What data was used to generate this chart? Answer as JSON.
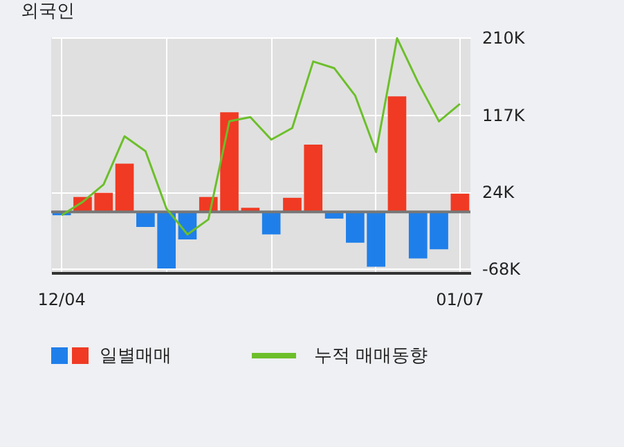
{
  "chart_data": {
    "type": "bar",
    "title": "외국인",
    "categories": [
      "12/04",
      null,
      null,
      null,
      null,
      null,
      null,
      null,
      null,
      null,
      null,
      null,
      null,
      null,
      null,
      null,
      null,
      null,
      null,
      "01/07"
    ],
    "series": [
      {
        "name": "일별매매",
        "colors": [
          "#1f7fea",
          "#f03a23",
          "#f03a23",
          "#f03a23",
          "#1f7fea",
          "#1f7fea",
          "#1f7fea",
          "#f03a23",
          "#f03a23",
          "#f03a23",
          "#1f7fea",
          "#f03a23",
          "#f03a23",
          "#1f7fea",
          "#1f7fea",
          "#1f7fea",
          "#f03a23",
          "#1f7fea",
          "#1f7fea",
          "#f03a23"
        ],
        "values": [
          -4,
          18,
          23,
          58,
          -18,
          -68,
          -33,
          18,
          120,
          5,
          -27,
          17,
          81,
          -8,
          -37,
          -66,
          139,
          -56,
          -45,
          22
        ]
      },
      {
        "name": "누적 매매동향",
        "type": "line",
        "color": "#6cbf2a",
        "values": [
          -4,
          12,
          33,
          91,
          73,
          4,
          -27,
          -9,
          109,
          114,
          87,
          101,
          181,
          173,
          140,
          72,
          209,
          156,
          109,
          130
        ]
      }
    ],
    "ylim": [
      -73,
      210
    ],
    "yticks": [
      {
        "value": 210,
        "label": "210K"
      },
      {
        "value": 117,
        "label": "117K"
      },
      {
        "value": 24,
        "label": "24K"
      },
      {
        "value": -68,
        "label": "-68K"
      }
    ],
    "grid": true,
    "legend": "bottom"
  }
}
